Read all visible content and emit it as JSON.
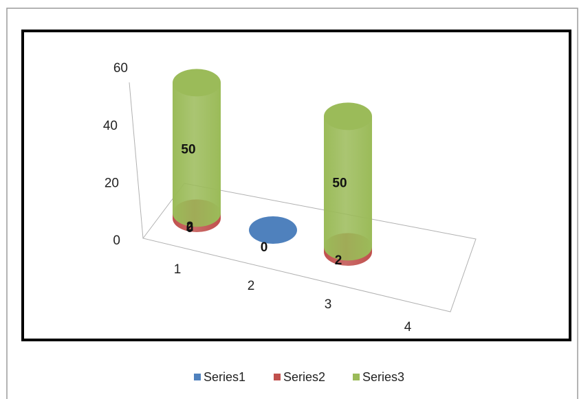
{
  "chart_data": {
    "type": "bar",
    "style": "3d-cylinder",
    "categories": [
      "1",
      "2",
      "3",
      "4"
    ],
    "series": [
      {
        "name": "Series1",
        "values": [
          0,
          0,
          0,
          0
        ],
        "color": "#4F81BD"
      },
      {
        "name": "Series2",
        "values": [
          2,
          0,
          2,
          0
        ],
        "color": "#C0504D"
      },
      {
        "name": "Series3",
        "values": [
          50,
          0,
          50,
          0
        ],
        "color": "#9BBB59"
      }
    ],
    "data_labels": [
      {
        "series": "Series1",
        "category": "1",
        "text": "0"
      },
      {
        "series": "Series2",
        "category": "1",
        "text": "2"
      },
      {
        "series": "Series3",
        "category": "1",
        "text": "50"
      },
      {
        "series": "Series1",
        "category": "2",
        "text": "0"
      },
      {
        "series": "Series2",
        "category": "3",
        "text": "2"
      },
      {
        "series": "Series3",
        "category": "3",
        "text": "50"
      }
    ],
    "y_ticks": [
      "0",
      "20",
      "40",
      "60"
    ],
    "ylim": [
      0,
      60
    ],
    "title": "",
    "xlabel": "",
    "ylabel": "",
    "grid": false,
    "legend_position": "bottom"
  }
}
